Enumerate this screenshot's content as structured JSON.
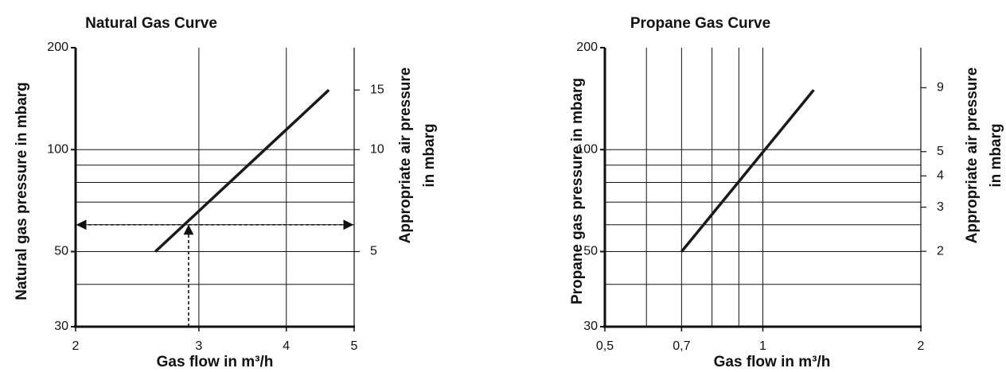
{
  "chart_data": [
    {
      "type": "line",
      "title": "Natural Gas Curve",
      "x_label": "Gas flow in m³/h",
      "y_label": "Natural gas pressure in mbarg",
      "y2_label": [
        "Appropriate air pressure",
        "in mbarg"
      ],
      "x_scale": "log",
      "y_scale": "log",
      "y2_scale": "log",
      "x": [
        2.6,
        4.6
      ],
      "values": [
        50,
        150
      ],
      "color": "#1a1a1a",
      "xlim": [
        2,
        5
      ],
      "xticks": [
        2,
        3,
        4,
        5
      ],
      "ylim": [
        30,
        200
      ],
      "yticks": [
        30,
        50,
        100,
        200
      ],
      "y_minor_gridlines": [
        40,
        60,
        70,
        80,
        90
      ],
      "y2lim": [
        3,
        20
      ],
      "y2ticks": [
        5,
        10,
        15
      ],
      "grid": true,
      "example_point": {
        "x": 2.9,
        "y": 60
      }
    },
    {
      "type": "line",
      "title": "Propane Gas Curve",
      "x_label": "Gas flow in m³/h",
      "y_label": "Propane gas pressure in mbarg",
      "y2_label": [
        "Appropriate air pressure",
        "in mbarg"
      ],
      "x_scale": "log",
      "y_scale": "log",
      "y2_scale": "log",
      "x": [
        0.7,
        1.25
      ],
      "values": [
        50,
        150
      ],
      "color": "#1a1a1a",
      "xlim": [
        0.5,
        2
      ],
      "xticks": [
        {
          "value": 0.5,
          "label": "0,5"
        },
        {
          "value": 0.7,
          "label": "0,7"
        },
        1,
        2
      ],
      "x_minor_gridlines": [
        0.6,
        0.8,
        0.9
      ],
      "ylim": [
        30,
        200
      ],
      "yticks": [
        30,
        50,
        100,
        200
      ],
      "y_minor_gridlines": [
        40,
        60,
        70,
        80,
        90
      ],
      "y2lim": [
        1,
        13
      ],
      "y2ticks": [
        2,
        3,
        4,
        5,
        9
      ],
      "grid": true
    }
  ]
}
